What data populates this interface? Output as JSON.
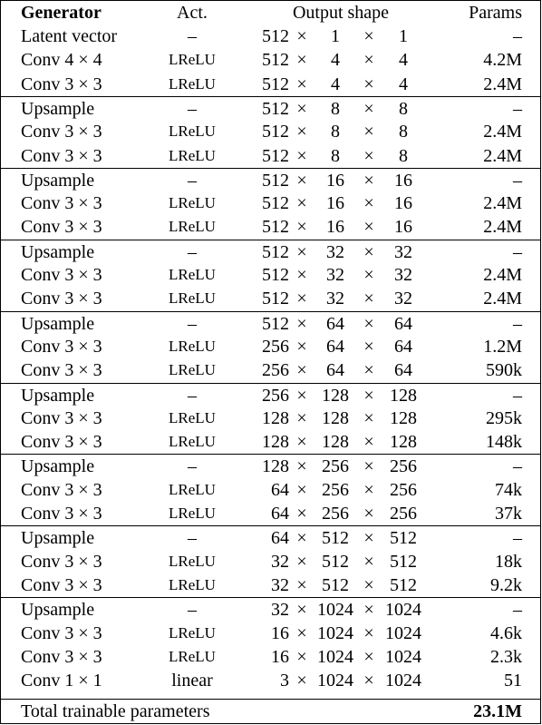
{
  "headers": {
    "generator": "Generator",
    "act": "Act.",
    "output_shape": "Output shape",
    "params": "Params"
  },
  "times": "×",
  "rows": [
    {
      "name": "Latent vector",
      "act": "–",
      "c": "512",
      "h": "1",
      "w": "1",
      "params": "–",
      "sep": false
    },
    {
      "name": "Conv 4 × 4",
      "act": "LReLU",
      "c": "512",
      "h": "4",
      "w": "4",
      "params": "4.2M",
      "sep": false
    },
    {
      "name": "Conv 3 × 3",
      "act": "LReLU",
      "c": "512",
      "h": "4",
      "w": "4",
      "params": "2.4M",
      "sep": false
    },
    {
      "name": "Upsample",
      "act": "–",
      "c": "512",
      "h": "8",
      "w": "8",
      "params": "–",
      "sep": true
    },
    {
      "name": "Conv 3 × 3",
      "act": "LReLU",
      "c": "512",
      "h": "8",
      "w": "8",
      "params": "2.4M",
      "sep": false
    },
    {
      "name": "Conv 3 × 3",
      "act": "LReLU",
      "c": "512",
      "h": "8",
      "w": "8",
      "params": "2.4M",
      "sep": false
    },
    {
      "name": "Upsample",
      "act": "–",
      "c": "512",
      "h": "16",
      "w": "16",
      "params": "–",
      "sep": true
    },
    {
      "name": "Conv 3 × 3",
      "act": "LReLU",
      "c": "512",
      "h": "16",
      "w": "16",
      "params": "2.4M",
      "sep": false
    },
    {
      "name": "Conv 3 × 3",
      "act": "LReLU",
      "c": "512",
      "h": "16",
      "w": "16",
      "params": "2.4M",
      "sep": false
    },
    {
      "name": "Upsample",
      "act": "–",
      "c": "512",
      "h": "32",
      "w": "32",
      "params": "–",
      "sep": true
    },
    {
      "name": "Conv 3 × 3",
      "act": "LReLU",
      "c": "512",
      "h": "32",
      "w": "32",
      "params": "2.4M",
      "sep": false
    },
    {
      "name": "Conv 3 × 3",
      "act": "LReLU",
      "c": "512",
      "h": "32",
      "w": "32",
      "params": "2.4M",
      "sep": false
    },
    {
      "name": "Upsample",
      "act": "–",
      "c": "512",
      "h": "64",
      "w": "64",
      "params": "–",
      "sep": true
    },
    {
      "name": "Conv 3 × 3",
      "act": "LReLU",
      "c": "256",
      "h": "64",
      "w": "64",
      "params": "1.2M",
      "sep": false
    },
    {
      "name": "Conv 3 × 3",
      "act": "LReLU",
      "c": "256",
      "h": "64",
      "w": "64",
      "params": "590k",
      "sep": false
    },
    {
      "name": "Upsample",
      "act": "–",
      "c": "256",
      "h": "128",
      "w": "128",
      "params": "–",
      "sep": true
    },
    {
      "name": "Conv 3 × 3",
      "act": "LReLU",
      "c": "128",
      "h": "128",
      "w": "128",
      "params": "295k",
      "sep": false
    },
    {
      "name": "Conv 3 × 3",
      "act": "LReLU",
      "c": "128",
      "h": "128",
      "w": "128",
      "params": "148k",
      "sep": false
    },
    {
      "name": "Upsample",
      "act": "–",
      "c": "128",
      "h": "256",
      "w": "256",
      "params": "–",
      "sep": true
    },
    {
      "name": "Conv 3 × 3",
      "act": "LReLU",
      "c": "64",
      "h": "256",
      "w": "256",
      "params": "74k",
      "sep": false
    },
    {
      "name": "Conv 3 × 3",
      "act": "LReLU",
      "c": "64",
      "h": "256",
      "w": "256",
      "params": "37k",
      "sep": false
    },
    {
      "name": "Upsample",
      "act": "–",
      "c": "64",
      "h": "512",
      "w": "512",
      "params": "–",
      "sep": true
    },
    {
      "name": "Conv 3 × 3",
      "act": "LReLU",
      "c": "32",
      "h": "512",
      "w": "512",
      "params": "18k",
      "sep": false
    },
    {
      "name": "Conv 3 × 3",
      "act": "LReLU",
      "c": "32",
      "h": "512",
      "w": "512",
      "params": "9.2k",
      "sep": false
    },
    {
      "name": "Upsample",
      "act": "–",
      "c": "32",
      "h": "1024",
      "w": "1024",
      "params": "–",
      "sep": true
    },
    {
      "name": "Conv 3 × 3",
      "act": "LReLU",
      "c": "16",
      "h": "1024",
      "w": "1024",
      "params": "4.6k",
      "sep": false
    },
    {
      "name": "Conv 3 × 3",
      "act": "LReLU",
      "c": "16",
      "h": "1024",
      "w": "1024",
      "params": "2.3k",
      "sep": false
    },
    {
      "name": "Conv 1 × 1",
      "act": "linear",
      "c": "3",
      "h": "1024",
      "w": "1024",
      "params": "51",
      "sep": false
    }
  ],
  "total": {
    "label": "Total trainable parameters",
    "value": "23.1M"
  }
}
